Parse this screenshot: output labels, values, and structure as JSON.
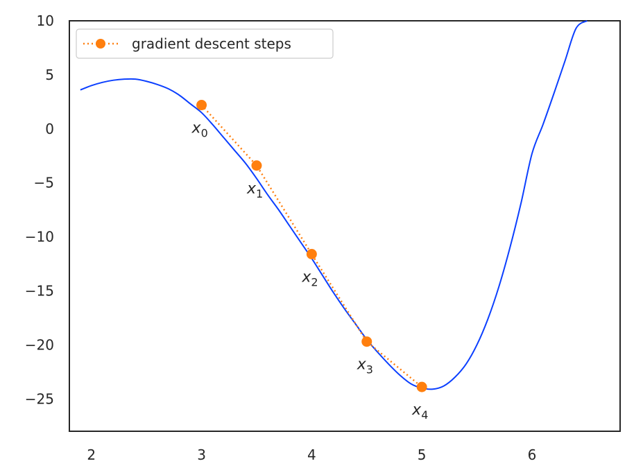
{
  "chart_data": {
    "type": "line",
    "title": "",
    "xlabel": "",
    "ylabel": "",
    "xlim": [
      1.8,
      6.8
    ],
    "ylim": [
      -28,
      10
    ],
    "xticks": [
      2,
      3,
      4,
      5,
      6
    ],
    "yticks": [
      10,
      5,
      0,
      -5,
      -10,
      -15,
      -20,
      -25
    ],
    "xtick_labels": [
      "2",
      "3",
      "4",
      "5",
      "6"
    ],
    "ytick_labels": [
      "10",
      "5",
      "0",
      "−5",
      "−10",
      "−15",
      "−20",
      "−25"
    ],
    "grid": false,
    "legend": {
      "position": "top-left",
      "entries": [
        "gradient descent steps"
      ]
    },
    "curve": {
      "color": "#0b3fff",
      "x": [
        1.9,
        2.0,
        2.1,
        2.2,
        2.3,
        2.4,
        2.5,
        2.6,
        2.7,
        2.8,
        2.9,
        3.0,
        3.1,
        3.2,
        3.3,
        3.4,
        3.5,
        3.6,
        3.7,
        3.8,
        3.9,
        4.0,
        4.1,
        4.2,
        4.3,
        4.4,
        4.5,
        4.6,
        4.7,
        4.8,
        4.9,
        5.0,
        5.1,
        5.2,
        5.3,
        5.4,
        5.5,
        5.6,
        5.7,
        5.8,
        5.9,
        6.0,
        6.1,
        6.2,
        6.3,
        6.4,
        6.5
      ],
      "y": [
        3.6,
        4.0,
        4.3,
        4.5,
        4.6,
        4.6,
        4.4,
        4.1,
        3.7,
        3.1,
        2.3,
        1.5,
        0.4,
        -0.8,
        -2.0,
        -3.2,
        -4.6,
        -6.1,
        -7.5,
        -9.0,
        -10.5,
        -12.0,
        -13.6,
        -15.2,
        -16.7,
        -18.1,
        -19.5,
        -20.7,
        -21.8,
        -22.8,
        -23.6,
        -24.0,
        -24.1,
        -23.8,
        -23.0,
        -21.8,
        -20.0,
        -17.6,
        -14.6,
        -11.0,
        -6.9,
        -2.3,
        0.4,
        3.3,
        6.3,
        9.3,
        10.0
      ]
    },
    "series": [
      {
        "name": "gradient descent steps",
        "color": "#ff7f0e",
        "x": [
          3.0,
          3.5,
          4.0,
          4.5,
          5.0
        ],
        "y": [
          2.2,
          -3.4,
          -11.6,
          -19.7,
          -23.9
        ],
        "labels": [
          "x",
          "x",
          "x",
          "x",
          "x"
        ],
        "subscripts": [
          "0",
          "1",
          "2",
          "3",
          "4"
        ]
      }
    ]
  }
}
